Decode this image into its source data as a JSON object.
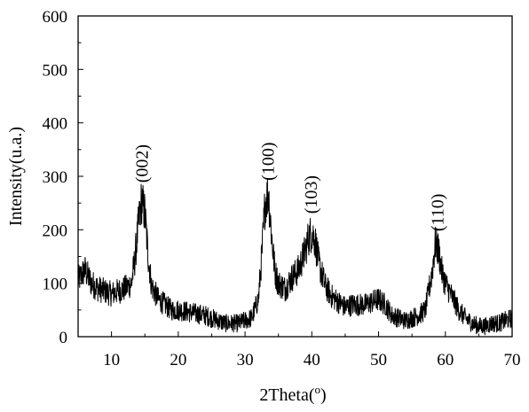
{
  "chart_data": {
    "type": "line",
    "xlabel": "2Theta(",
    "xlabel_sup": "o",
    "xlabel_close": ")",
    "ylabel": "Intensity(u.a.)",
    "xlim": [
      5,
      70
    ],
    "ylim": [
      0,
      600
    ],
    "x_ticks": [
      10,
      20,
      30,
      40,
      50,
      60,
      70
    ],
    "y_ticks": [
      0,
      100,
      200,
      300,
      400,
      500,
      600
    ],
    "grid": false,
    "line_color": "#000000",
    "series": [
      {
        "x": [
          5,
          6,
          7,
          8,
          9,
          10,
          11,
          12,
          13,
          13.5,
          14,
          14.5,
          15,
          15.5,
          16,
          17,
          18,
          19,
          20,
          22,
          24,
          26,
          27,
          28,
          29,
          30,
          31,
          32,
          32.5,
          33,
          33.5,
          34,
          34.5,
          35,
          36,
          37,
          38,
          39,
          39.5,
          40,
          40.5,
          41,
          42,
          43,
          44,
          45,
          46,
          47,
          48,
          49,
          50,
          51,
          52,
          53,
          54,
          55,
          56,
          57,
          58,
          58.5,
          59,
          59.5,
          60,
          61,
          62,
          63,
          64,
          65,
          66,
          67,
          68,
          69,
          70
        ],
        "y": [
          105,
          125,
          100,
          90,
          85,
          80,
          85,
          90,
          100,
          145,
          205,
          255,
          230,
          150,
          95,
          70,
          60,
          50,
          50,
          45,
          40,
          30,
          25,
          25,
          25,
          30,
          35,
          70,
          150,
          250,
          270,
          185,
          120,
          100,
          90,
          110,
          125,
          160,
          185,
          195,
          180,
          140,
          95,
          75,
          65,
          55,
          60,
          60,
          60,
          65,
          70,
          60,
          40,
          35,
          30,
          35,
          40,
          50,
          120,
          175,
          160,
          120,
          100,
          75,
          50,
          35,
          25,
          20,
          20,
          25,
          25,
          30,
          35
        ]
      }
    ],
    "peak_labels": [
      {
        "text": "(002)",
        "x": 14.5,
        "y": 288
      },
      {
        "text": "(100)",
        "x": 33.4,
        "y": 292
      },
      {
        "text": "(103)",
        "x": 39.8,
        "y": 230
      },
      {
        "text": "(110)",
        "x": 58.8,
        "y": 197
      }
    ]
  }
}
